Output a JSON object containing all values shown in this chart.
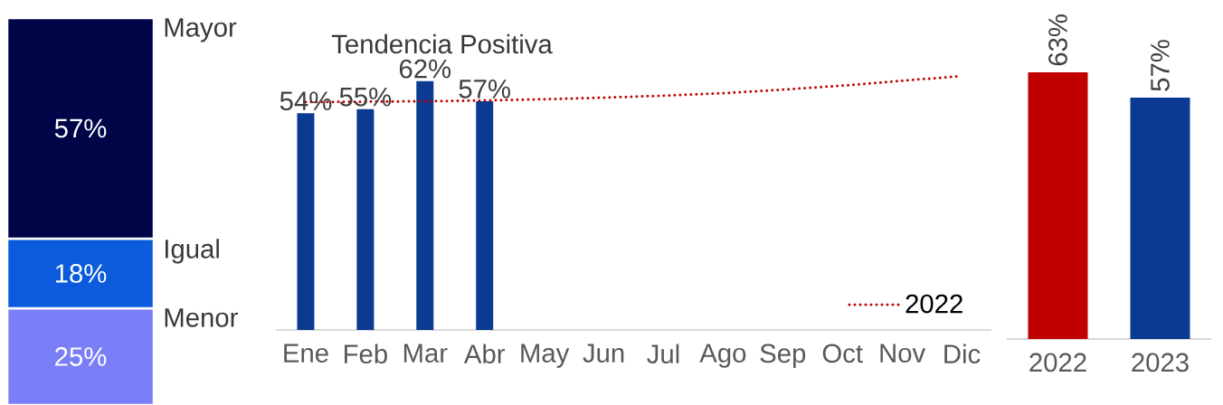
{
  "chart_data": [
    {
      "type": "bar",
      "stacked": true,
      "categories": [
        null
      ],
      "series": [
        {
          "name": "Menor",
          "color": "#7b7ff7",
          "values": [
            25
          ],
          "value_labels": [
            "25%"
          ]
        },
        {
          "name": "Igual",
          "color": "#0b5bdc",
          "values": [
            18
          ],
          "value_labels": [
            "18%"
          ]
        },
        {
          "name": "Mayor",
          "color": "#000548",
          "values": [
            57
          ],
          "value_labels": [
            "57%"
          ]
        }
      ]
    },
    {
      "type": "bar",
      "title": "Tendencia Positiva",
      "categories": [
        "Ene",
        "Feb",
        "Mar",
        "Abr",
        "May",
        "Jun",
        "Jul",
        "Ago",
        "Sep",
        "Oct",
        "Nov",
        "Dic"
      ],
      "legend": "bottom right",
      "series": [
        {
          "color": "#0b3a92",
          "values": [
            54,
            55,
            62,
            57,
            null,
            null,
            null,
            null,
            null,
            null,
            null,
            null
          ],
          "value_labels": [
            "54%",
            "55%",
            "62%",
            "57%",
            null,
            null,
            null,
            null,
            null,
            null,
            null,
            null
          ]
        },
        {
          "name": "2022",
          "type": "line",
          "color": "#c00000",
          "line_style": "dotted",
          "values": [
            56.8,
            56.9,
            57.0,
            57.2,
            57.5,
            57.9,
            58.4,
            59.0,
            59.9,
            60.9,
            62.1,
            63.3
          ]
        }
      ]
    },
    {
      "type": "bar",
      "categories": [
        "2022",
        "2023"
      ],
      "values": [
        63,
        57
      ],
      "colors": [
        "#c00000",
        "#0b3a92"
      ],
      "value_labels": [
        "63%",
        "57%"
      ]
    }
  ]
}
